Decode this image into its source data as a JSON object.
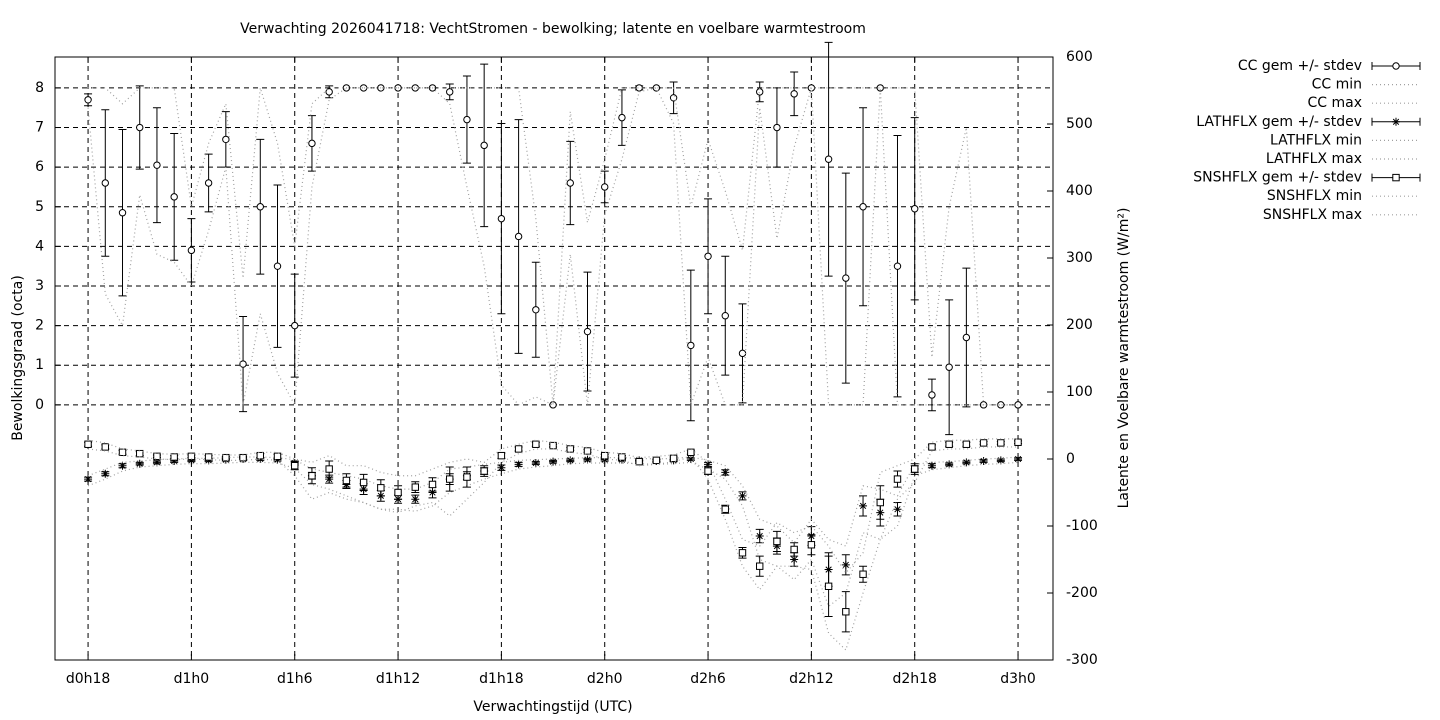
{
  "chart_data": {
    "type": "errorbar-line",
    "title": "Verwachting 2026041718: VechtStromen - bewolking; latente en voelbare warmtestroom",
    "x_label": "Verwachtingstijd (UTC)",
    "y_label": "Bewolkingsgraad (octa)",
    "y2_label": "Latente en Voelbare warmtestroom (W/m²)",
    "xlim": [
      16.08,
      74.03
    ],
    "xticks": [
      {
        "value": 18,
        "label": "d0h18"
      },
      {
        "value": 24,
        "label": "d1h0"
      },
      {
        "value": 30,
        "label": "d1h6"
      },
      {
        "value": 36,
        "label": "d1h12"
      },
      {
        "value": 42,
        "label": "d1h18"
      },
      {
        "value": 48,
        "label": "d2h0"
      },
      {
        "value": 54,
        "label": "d2h6"
      },
      {
        "value": 60,
        "label": "d2h12"
      },
      {
        "value": 66,
        "label": "d2h18"
      },
      {
        "value": 72,
        "label": "d3h0"
      }
    ],
    "ylim": [
      -6.44,
      8.78
    ],
    "yticks": [
      0,
      1,
      2,
      3,
      4,
      5,
      6,
      7,
      8
    ],
    "y2lim": [
      -300,
      600
    ],
    "y2ticks": [
      -300,
      -200,
      -100,
      0,
      100,
      200,
      300,
      400,
      500,
      600
    ],
    "grid": true,
    "legend": "outside-right",
    "x": [
      18,
      19,
      20,
      21,
      22,
      23,
      24,
      25,
      26,
      27,
      28,
      29,
      30,
      31,
      32,
      33,
      34,
      35,
      36,
      37,
      38,
      39,
      40,
      41,
      42,
      43,
      44,
      45,
      46,
      47,
      48,
      49,
      50,
      51,
      52,
      53,
      54,
      55,
      56,
      57,
      58,
      59,
      60,
      61,
      62,
      63,
      64,
      65,
      66,
      67,
      68,
      69,
      70,
      71,
      72
    ],
    "series": [
      {
        "name": "CC gem +/- stdev",
        "style": "errorbars",
        "point": "circle",
        "color": "#000000",
        "values": [
          7.7,
          5.6,
          4.85,
          7.0,
          6.05,
          5.25,
          3.9,
          5.6,
          6.7,
          1.03,
          5.0,
          3.5,
          2.0,
          6.6,
          7.9,
          8,
          8,
          8,
          8,
          8,
          8,
          7.9,
          7.2,
          6.55,
          4.7,
          4.25,
          2.4,
          0,
          5.6,
          1.85,
          5.5,
          7.25,
          8,
          8,
          7.75,
          1.5,
          3.75,
          2.25,
          1.3,
          7.9,
          7.0,
          7.85,
          8,
          6.2,
          3.2,
          5.0,
          8,
          3.5,
          4.95,
          0.25,
          0.95,
          1.7,
          0,
          0,
          0
        ],
        "stdev": [
          0.15,
          1.85,
          2.1,
          1.05,
          1.45,
          1.6,
          0.8,
          0.73,
          0.7,
          1.2,
          1.7,
          2.05,
          1.3,
          0.7,
          0.15,
          0,
          0,
          0,
          0,
          0,
          0,
          0.2,
          1.1,
          2.05,
          2.4,
          2.95,
          1.2,
          0,
          1.05,
          1.5,
          0.4,
          0.7,
          0.05,
          0,
          0.4,
          1.9,
          1.45,
          1.5,
          1.25,
          0.25,
          1.0,
          0.55,
          0,
          2.95,
          2.65,
          2.5,
          0,
          3.3,
          2.3,
          0.4,
          1.7,
          1.75,
          0,
          0,
          0
        ]
      },
      {
        "name": "CC min",
        "style": "dotted",
        "color": "#a0a0a0",
        "values": [
          7.5,
          2.8,
          2.0,
          5.3,
          3.8,
          3.6,
          3.0,
          4.4,
          6.0,
          0,
          2.3,
          0.8,
          0,
          5.5,
          7.7,
          8,
          8,
          8,
          8,
          8,
          8,
          7.6,
          5.5,
          3.5,
          0.5,
          0,
          0.2,
          0,
          3.8,
          0,
          4.8,
          6.2,
          7.9,
          8,
          7.1,
          0,
          1.2,
          0,
          0,
          7.5,
          4.2,
          6.5,
          8,
          0,
          0,
          0,
          8,
          0,
          0,
          0,
          0,
          0,
          0,
          0,
          0
        ]
      },
      {
        "name": "CC max",
        "style": "dotted",
        "color": "#a0a0a0",
        "values": [
          8,
          8,
          7.6,
          8,
          8,
          8,
          5.0,
          6.6,
          7.6,
          3.2,
          8,
          6.6,
          4.0,
          7.6,
          8,
          8,
          8,
          8,
          8,
          8,
          8,
          8,
          8,
          8,
          8,
          8,
          4.7,
          0,
          7.4,
          4.6,
          6.2,
          8,
          8,
          8,
          8,
          5.0,
          6.7,
          5.4,
          3.9,
          8,
          8,
          8,
          8,
          8,
          8,
          8,
          8,
          8,
          8,
          1.2,
          5.0,
          7.0,
          0,
          0,
          0
        ]
      },
      {
        "name": "LATHFLX gem +/- stdev",
        "style": "errorbars",
        "point": "star",
        "color": "#000000",
        "axis": "y2",
        "values": [
          -30,
          -22,
          -10,
          -7,
          -5,
          -3,
          -2,
          -2,
          -1,
          0,
          0,
          -1,
          -6,
          -25,
          -30,
          -38,
          -45,
          -55,
          -60,
          -60,
          -50,
          -30,
          -25,
          -18,
          -13,
          -8,
          -6,
          -4,
          -2,
          -1,
          -1,
          -1,
          -2,
          -3,
          -2,
          0,
          -8,
          -20,
          -55,
          -115,
          -130,
          -150,
          -115,
          -165,
          -158,
          -70,
          -80,
          -75,
          -15,
          -10,
          -8,
          -5,
          -3,
          -2,
          0
        ],
        "stdev": [
          3,
          3,
          3,
          2,
          2,
          2,
          2,
          2,
          2,
          2,
          2,
          2,
          3,
          5,
          6,
          6,
          8,
          8,
          6,
          6,
          8,
          8,
          6,
          5,
          4,
          3,
          2,
          2,
          2,
          2,
          2,
          2,
          2,
          2,
          2,
          2,
          3,
          4,
          6,
          10,
          12,
          10,
          14,
          25,
          15,
          15,
          20,
          10,
          5,
          3,
          2,
          2,
          2,
          2,
          2
        ]
      },
      {
        "name": "LATHFLX min",
        "style": "dotted",
        "color": "#a0a0a0",
        "axis": "y2",
        "values": [
          -40,
          -30,
          -18,
          -12,
          -10,
          -8,
          -7,
          -7,
          -6,
          -5,
          -5,
          -6,
          -14,
          -38,
          -45,
          -55,
          -65,
          -75,
          -75,
          -78,
          -70,
          -50,
          -40,
          -30,
          -22,
          -15,
          -12,
          -10,
          -7,
          -6,
          -6,
          -6,
          -7,
          -8,
          -7,
          -5,
          -15,
          -30,
          -70,
          -150,
          -160,
          -180,
          -150,
          -220,
          -200,
          -110,
          -120,
          -100,
          -25,
          -16,
          -13,
          -10,
          -8,
          -7,
          -5
        ]
      },
      {
        "name": "LATHFLX max",
        "style": "dotted",
        "color": "#a0a0a0",
        "axis": "y2",
        "values": [
          -25,
          -15,
          -5,
          -3,
          -1,
          0,
          1,
          1,
          2,
          3,
          3,
          2,
          -1,
          -15,
          -20,
          -25,
          -30,
          -40,
          -45,
          -45,
          -35,
          -15,
          -12,
          -8,
          -5,
          -2,
          -1,
          0,
          1,
          2,
          2,
          2,
          1,
          0,
          1,
          3,
          -2,
          -10,
          -40,
          -90,
          -100,
          -125,
          -90,
          -120,
          -130,
          -40,
          -45,
          -55,
          -8,
          -5,
          -4,
          -2,
          0,
          1,
          3
        ]
      },
      {
        "name": "SNSHFLX gem +/- stdev",
        "style": "errorbars",
        "point": "square",
        "color": "#000000",
        "axis": "y2",
        "values": [
          22,
          18,
          10,
          8,
          4,
          3,
          4,
          3,
          2,
          2,
          5,
          4,
          -10,
          -25,
          -15,
          -32,
          -35,
          -43,
          -50,
          -42,
          -38,
          -30,
          -27,
          -18,
          5,
          15,
          22,
          20,
          15,
          12,
          5,
          3,
          -4,
          -2,
          1,
          10,
          -18,
          -75,
          -140,
          -160,
          -123,
          -135,
          -128,
          -190,
          -228,
          -172,
          -65,
          -30,
          -15,
          18,
          22,
          22,
          24,
          24,
          25
        ],
        "stdev": [
          3,
          3,
          3,
          3,
          2,
          2,
          2,
          2,
          2,
          2,
          3,
          3,
          6,
          12,
          12,
          10,
          12,
          12,
          10,
          8,
          10,
          18,
          15,
          8,
          4,
          3,
          3,
          2,
          2,
          2,
          2,
          2,
          2,
          2,
          2,
          3,
          5,
          6,
          8,
          15,
          15,
          10,
          15,
          45,
          30,
          12,
          25,
          12,
          8,
          3,
          3,
          3,
          2,
          2,
          2
        ]
      },
      {
        "name": "SNSHFLX min",
        "style": "dotted",
        "color": "#a0a0a0",
        "axis": "y2",
        "values": [
          15,
          12,
          5,
          3,
          0,
          -1,
          0,
          -1,
          -2,
          -2,
          0,
          -2,
          -25,
          -60,
          -50,
          -60,
          -65,
          -75,
          -80,
          -70,
          -65,
          -85,
          -60,
          -35,
          -5,
          8,
          15,
          15,
          10,
          7,
          0,
          -2,
          -10,
          -8,
          -4,
          3,
          -30,
          -90,
          -160,
          -195,
          -160,
          -160,
          -165,
          -260,
          -285,
          -200,
          -120,
          -60,
          -35,
          12,
          15,
          15,
          18,
          18,
          18
        ]
      },
      {
        "name": "SNSHFLX max",
        "style": "dotted",
        "color": "#a0a0a0",
        "axis": "y2",
        "values": [
          28,
          24,
          15,
          12,
          8,
          7,
          8,
          7,
          6,
          6,
          10,
          10,
          0,
          -5,
          5,
          -10,
          -10,
          -20,
          -25,
          -25,
          -15,
          -5,
          0,
          -5,
          15,
          22,
          28,
          25,
          20,
          17,
          10,
          8,
          2,
          4,
          6,
          15,
          -5,
          -60,
          -120,
          -130,
          -95,
          -110,
          -100,
          -130,
          -170,
          -140,
          -20,
          -10,
          0,
          25,
          28,
          28,
          30,
          30,
          30
        ]
      }
    ]
  }
}
